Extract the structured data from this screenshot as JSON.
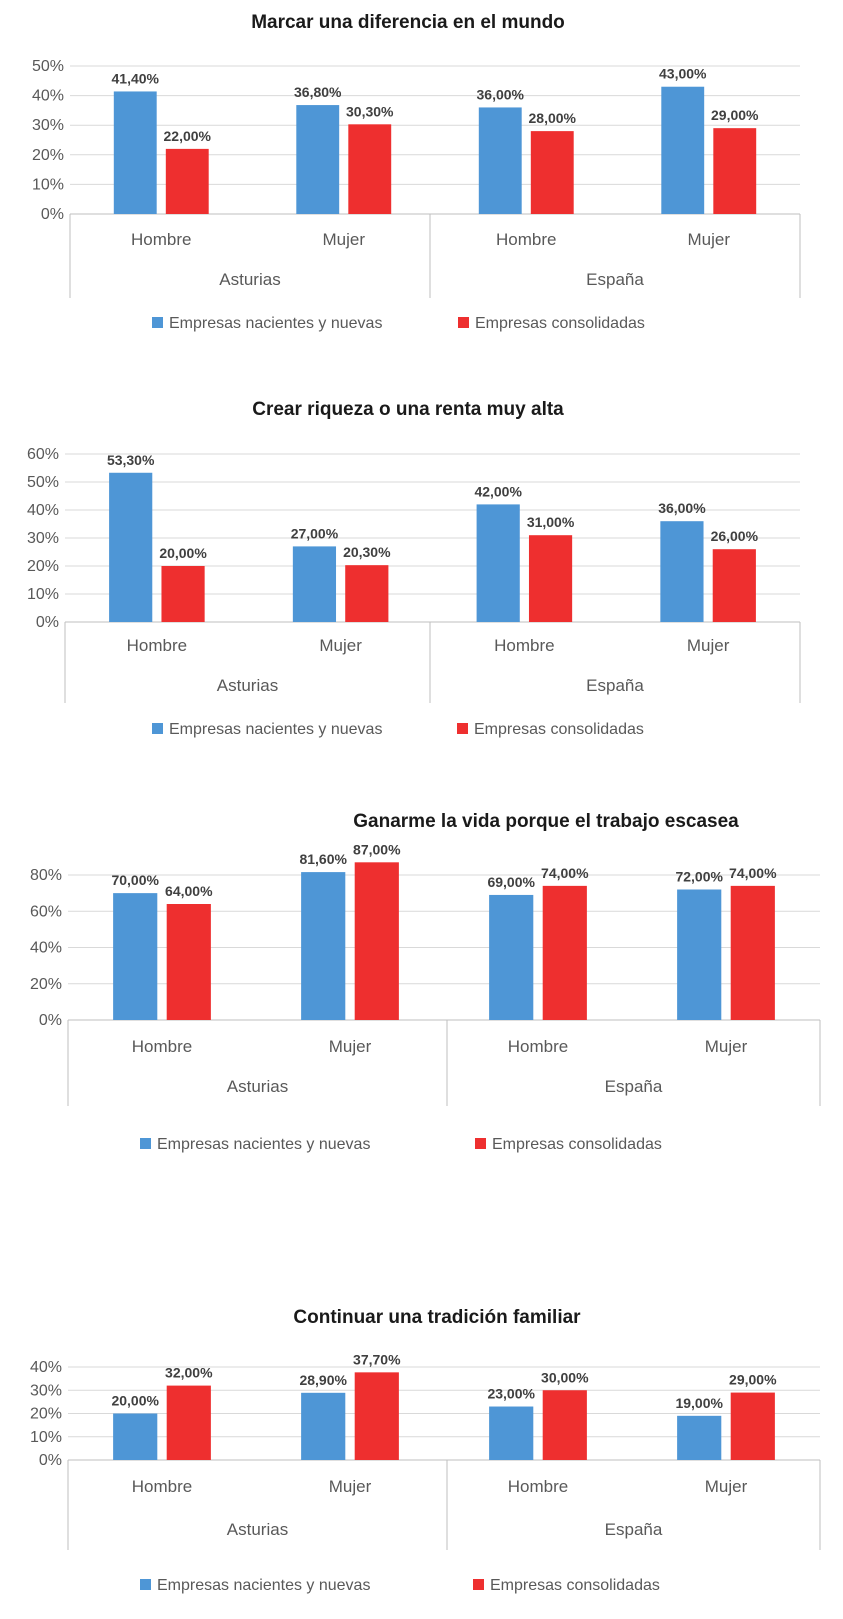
{
  "colors": {
    "series1": "#4e96d6",
    "series2": "#ee2f2f",
    "grid": "#d9d9d9",
    "axis": "#bfbfbf"
  },
  "chart_data": [
    {
      "type": "bar",
      "title": "Marcar una diferencia en el mundo",
      "groups": [
        "Asturias",
        "España"
      ],
      "categories": [
        "Hombre",
        "Mujer",
        "Hombre",
        "Mujer"
      ],
      "ylim": [
        0,
        50
      ],
      "yticks": [
        "0%",
        "10%",
        "20%",
        "30%",
        "40%",
        "50%"
      ],
      "series": [
        {
          "name": "Empresas nacientes y nuevas",
          "values": [
            41.4,
            36.8,
            36.0,
            43.0
          ],
          "labels": [
            "41,40%",
            "36,80%",
            "36,00%",
            "43,00%"
          ]
        },
        {
          "name": "Empresas consolidadas",
          "values": [
            22.0,
            30.3,
            28.0,
            29.0
          ],
          "labels": [
            "22,00%",
            "30,30%",
            "28,00%",
            "29,00%"
          ]
        }
      ],
      "grid": true,
      "legend": "bottom"
    },
    {
      "type": "bar",
      "title": "Crear riqueza o una renta muy alta",
      "groups": [
        "Asturias",
        "España"
      ],
      "categories": [
        "Hombre",
        "Mujer",
        "Hombre",
        "Mujer"
      ],
      "ylim": [
        0,
        60
      ],
      "yticks": [
        "0%",
        "10%",
        "20%",
        "30%",
        "40%",
        "50%",
        "60%"
      ],
      "series": [
        {
          "name": "Empresas nacientes y nuevas",
          "values": [
            53.3,
            27.0,
            42.0,
            36.0
          ],
          "labels": [
            "53,30%",
            "27,00%",
            "42,00%",
            "36,00%"
          ]
        },
        {
          "name": "Empresas consolidadas",
          "values": [
            20.0,
            20.3,
            31.0,
            26.0
          ],
          "labels": [
            "20,00%",
            "20,30%",
            "31,00%",
            "26,00%"
          ]
        }
      ],
      "grid": true,
      "legend": "bottom"
    },
    {
      "type": "bar",
      "title": "Ganarme la vida porque el trabajo escasea",
      "groups": [
        "Asturias",
        "España"
      ],
      "categories": [
        "Hombre",
        "Mujer",
        "Hombre",
        "Mujer"
      ],
      "ylim": [
        0,
        80
      ],
      "yticks": [
        "0%",
        "20%",
        "40%",
        "60%",
        "80%"
      ],
      "series": [
        {
          "name": "Empresas nacientes y nuevas",
          "values": [
            70.0,
            81.6,
            69.0,
            72.0
          ],
          "labels": [
            "70,00%",
            "81,60%",
            "69,00%",
            "72,00%"
          ]
        },
        {
          "name": "Empresas consolidadas",
          "values": [
            64.0,
            87.0,
            74.0,
            74.0
          ],
          "labels": [
            "64,00%",
            "87,00%",
            "74,00%",
            "74,00%"
          ]
        }
      ],
      "grid": true,
      "legend": "bottom"
    },
    {
      "type": "bar",
      "title": "Continuar una tradición familiar",
      "groups": [
        "Asturias",
        "España"
      ],
      "categories": [
        "Hombre",
        "Mujer",
        "Hombre",
        "Mujer"
      ],
      "ylim": [
        0,
        40
      ],
      "yticks": [
        "0%",
        "10%",
        "20%",
        "30%",
        "40%"
      ],
      "series": [
        {
          "name": "Empresas nacientes y nuevas",
          "values": [
            20.0,
            28.9,
            23.0,
            19.0
          ],
          "labels": [
            "20,00%",
            "28,90%",
            "23,00%",
            "19,00%"
          ]
        },
        {
          "name": "Empresas consolidadas",
          "values": [
            32.0,
            37.7,
            30.0,
            29.0
          ],
          "labels": [
            "32,00%",
            "37,70%",
            "30,00%",
            "29,00%"
          ]
        }
      ],
      "grid": true,
      "legend": "bottom"
    }
  ]
}
